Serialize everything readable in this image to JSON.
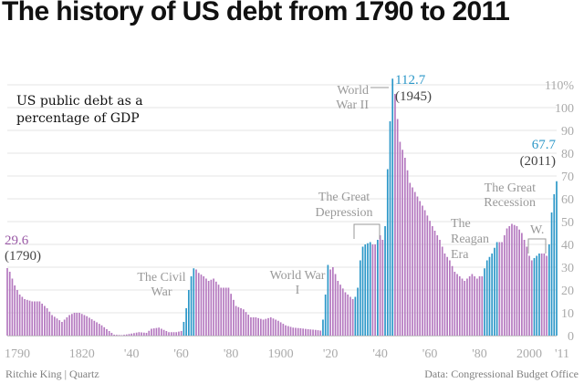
{
  "chart_data": {
    "type": "bar",
    "title": "The history of US debt from 1790 to 2011",
    "subtitle": "US public debt as a percentage of GDP",
    "credit": "Ritchie King | Quartz",
    "source": "Data: Congressional Budget Office",
    "xlabel": "",
    "ylabel": "",
    "ylim": [
      0,
      110
    ],
    "x_range": [
      1790,
      2011
    ],
    "y_ticks": [
      "0",
      "10",
      "20",
      "30",
      "40",
      "50",
      "60",
      "70",
      "80",
      "90",
      "100",
      "110%"
    ],
    "x_ticks": [
      {
        "year": 1790,
        "label": "1790"
      },
      {
        "year": 1820,
        "label": "1820"
      },
      {
        "year": 1840,
        "label": "'40"
      },
      {
        "year": 1860,
        "label": "'60"
      },
      {
        "year": 1880,
        "label": "'80"
      },
      {
        "year": 1900,
        "label": "1900"
      },
      {
        "year": 1920,
        "label": "'20"
      },
      {
        "year": 1940,
        "label": "'40"
      },
      {
        "year": 1960,
        "label": "'60"
      },
      {
        "year": 1980,
        "label": "'80"
      },
      {
        "year": 2000,
        "label": "2000"
      },
      {
        "year": 2011,
        "label": "'11"
      }
    ],
    "colors": {
      "rising": "#2b97c8",
      "declining": "#b478bf",
      "annotation": "#999999",
      "highlight": "#2b97c8",
      "text": "#333333"
    },
    "gridlines": true,
    "highlight_periods": [
      {
        "label": "The Civil War",
        "start": 1861,
        "end": 1865
      },
      {
        "label": "World War I",
        "start": 1917,
        "end": 1919
      },
      {
        "label": "The Great Depression",
        "start": 1930,
        "end": 1939
      },
      {
        "label": "World War II",
        "start": 1941,
        "end": 1945
      },
      {
        "label": "The Reagan Era",
        "start": 1981,
        "end": 1989
      },
      {
        "label": "W.",
        "start": 2001,
        "end": 2008
      },
      {
        "label": "The Great Recession",
        "start": 2008,
        "end": 2011
      }
    ],
    "callouts": [
      {
        "value": "29.6",
        "year_label": "(1790)"
      },
      {
        "value": "112.7",
        "year_label": "(1945)"
      },
      {
        "value": "67.7",
        "year_label": "(2011)"
      }
    ],
    "anchor_points": [
      [
        1790,
        29.6
      ],
      [
        1791,
        28
      ],
      [
        1793,
        22
      ],
      [
        1795,
        18
      ],
      [
        1797,
        16
      ],
      [
        1800,
        15
      ],
      [
        1803,
        15
      ],
      [
        1806,
        12
      ],
      [
        1808,
        9
      ],
      [
        1812,
        6
      ],
      [
        1815,
        9
      ],
      [
        1817,
        10
      ],
      [
        1819,
        10
      ],
      [
        1822,
        8.5
      ],
      [
        1825,
        6.5
      ],
      [
        1828,
        4.5
      ],
      [
        1831,
        2
      ],
      [
        1833,
        0.4
      ],
      [
        1836,
        0.2
      ],
      [
        1838,
        0.5
      ],
      [
        1843,
        1.5
      ],
      [
        1846,
        1.2
      ],
      [
        1848,
        3
      ],
      [
        1851,
        3.5
      ],
      [
        1855,
        1.5
      ],
      [
        1858,
        1.5
      ],
      [
        1860,
        2
      ],
      [
        1861,
        6
      ],
      [
        1862,
        12
      ],
      [
        1863,
        20
      ],
      [
        1864,
        26
      ],
      [
        1865,
        29.5
      ],
      [
        1866,
        29
      ],
      [
        1867,
        27.5
      ],
      [
        1869,
        26
      ],
      [
        1871,
        24
      ],
      [
        1873,
        25
      ],
      [
        1876,
        21
      ],
      [
        1879,
        21
      ],
      [
        1882,
        13
      ],
      [
        1885,
        11.5
      ],
      [
        1888,
        8
      ],
      [
        1890,
        8
      ],
      [
        1893,
        7
      ],
      [
        1896,
        8
      ],
      [
        1899,
        6.5
      ],
      [
        1902,
        4.5
      ],
      [
        1905,
        3.5
      ],
      [
        1908,
        3.2
      ],
      [
        1911,
        2.8
      ],
      [
        1914,
        2.5
      ],
      [
        1916,
        2.2
      ],
      [
        1917,
        7
      ],
      [
        1918,
        18
      ],
      [
        1919,
        31
      ],
      [
        1920,
        29
      ],
      [
        1921,
        30
      ],
      [
        1923,
        24
      ],
      [
        1926,
        19
      ],
      [
        1929,
        16
      ],
      [
        1930,
        17
      ],
      [
        1931,
        21
      ],
      [
        1932,
        33
      ],
      [
        1933,
        39
      ],
      [
        1934,
        40
      ],
      [
        1936,
        41
      ],
      [
        1937,
        40
      ],
      [
        1938,
        40
      ],
      [
        1939,
        42
      ],
      [
        1940,
        44
      ],
      [
        1941,
        42
      ],
      [
        1942,
        48
      ],
      [
        1943,
        73
      ],
      [
        1944,
        94
      ],
      [
        1945,
        112.7
      ],
      [
        1946,
        106
      ],
      [
        1947,
        95
      ],
      [
        1948,
        85
      ],
      [
        1950,
        78
      ],
      [
        1952,
        67
      ],
      [
        1955,
        61
      ],
      [
        1958,
        55
      ],
      [
        1961,
        48
      ],
      [
        1964,
        42
      ],
      [
        1966,
        36
      ],
      [
        1968,
        33
      ],
      [
        1970,
        28
      ],
      [
        1972,
        26
      ],
      [
        1974,
        24
      ],
      [
        1975,
        25
      ],
      [
        1977,
        27
      ],
      [
        1979,
        25
      ],
      [
        1980,
        26
      ],
      [
        1981,
        26
      ],
      [
        1983,
        33
      ],
      [
        1985,
        36
      ],
      [
        1987,
        41
      ],
      [
        1989,
        41
      ],
      [
        1991,
        47
      ],
      [
        1993,
        49
      ],
      [
        1995,
        48
      ],
      [
        1997,
        45
      ],
      [
        1999,
        39
      ],
      [
        2000,
        35
      ],
      [
        2001,
        33
      ],
      [
        2002,
        34
      ],
      [
        2004,
        36
      ],
      [
        2006,
        36
      ],
      [
        2007,
        35
      ],
      [
        2008,
        40
      ],
      [
        2009,
        54
      ],
      [
        2010,
        62
      ],
      [
        2011,
        67.7
      ]
    ]
  }
}
